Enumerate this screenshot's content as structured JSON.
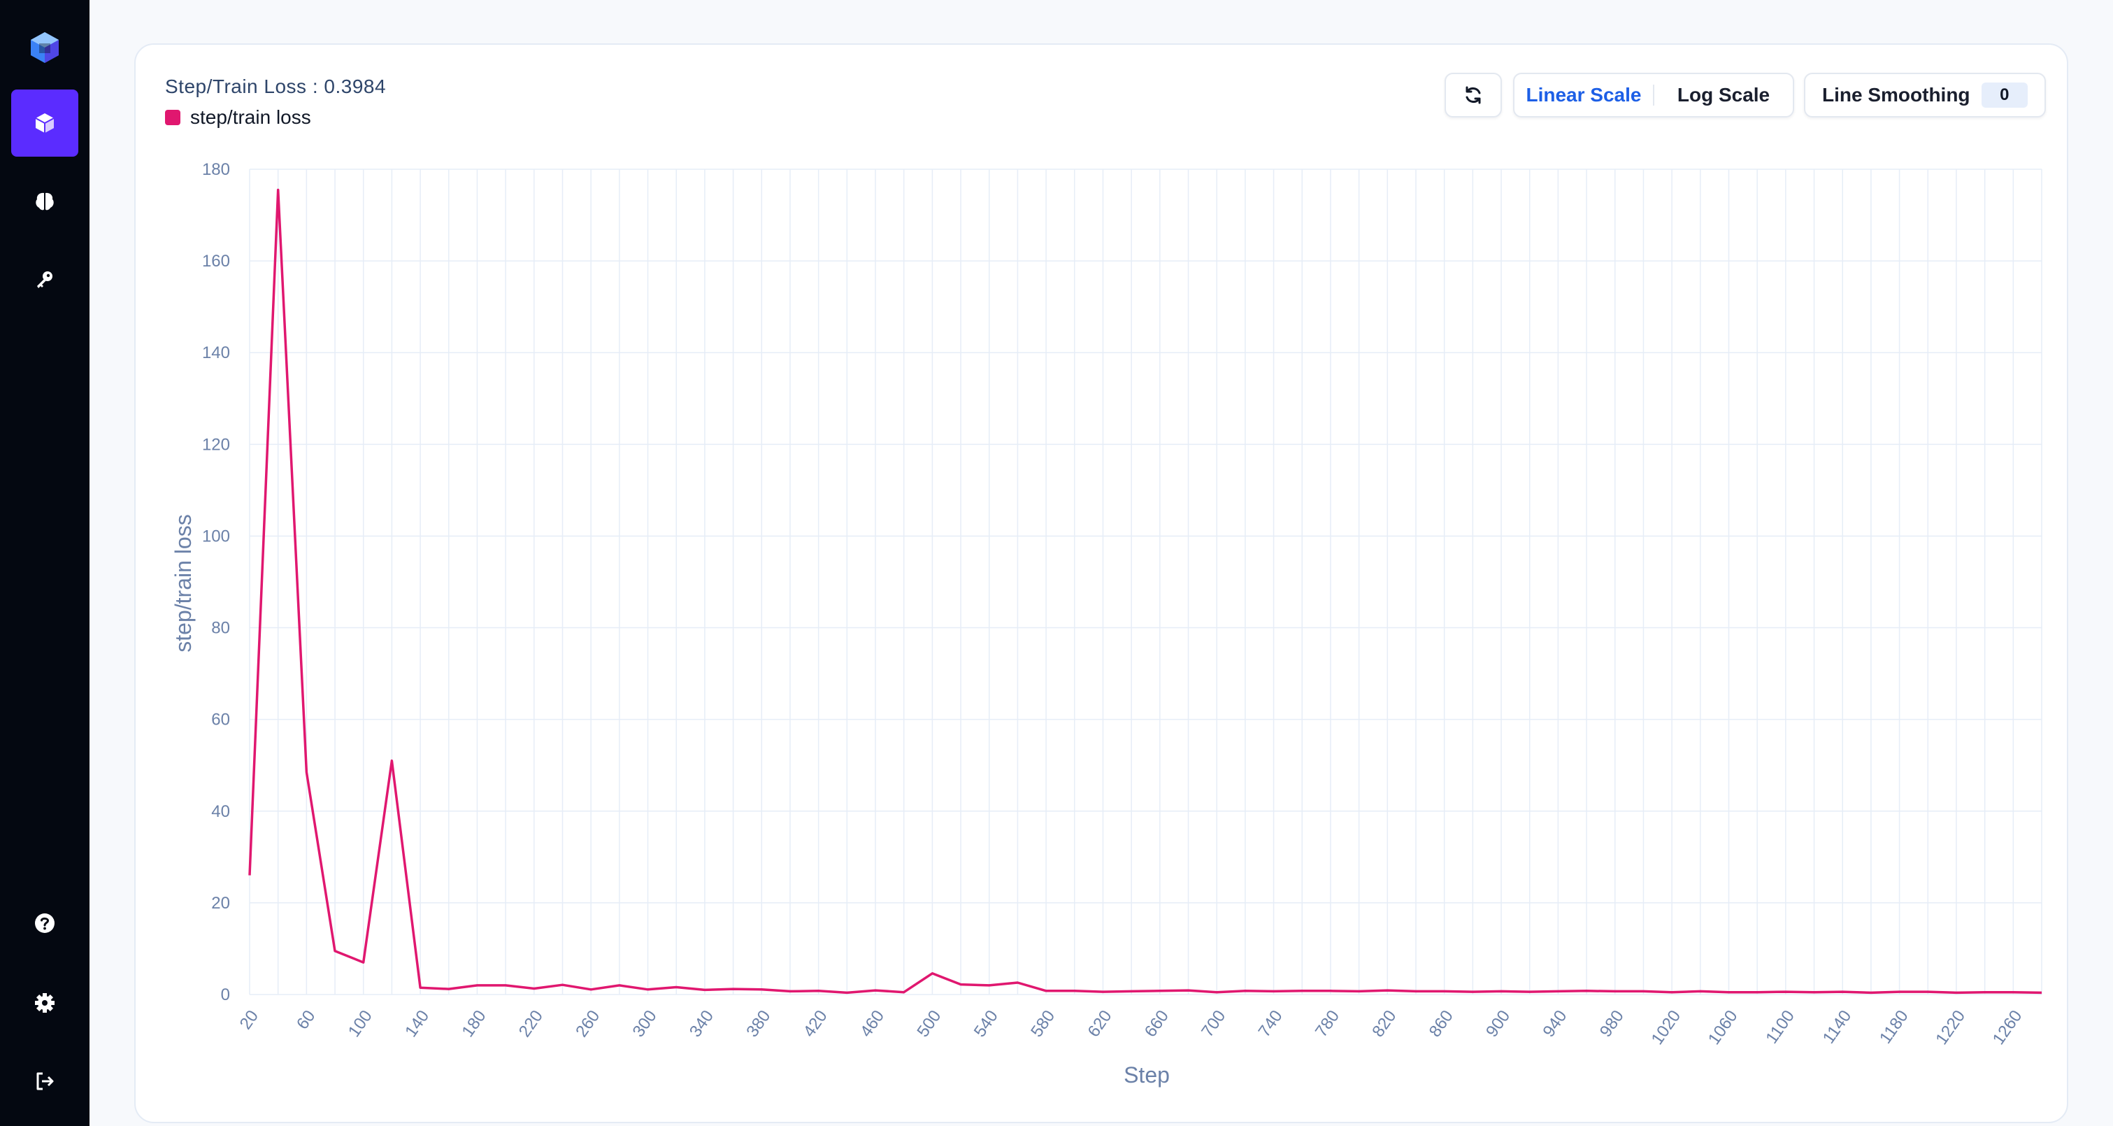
{
  "sidebar": {
    "items": [
      {
        "name": "models",
        "icon": "cube-icon",
        "active": true
      },
      {
        "name": "brain",
        "icon": "brain-icon",
        "active": false
      },
      {
        "name": "keys",
        "icon": "key-icon",
        "active": false
      }
    ],
    "bottom": [
      {
        "name": "help",
        "icon": "help-icon"
      },
      {
        "name": "settings",
        "icon": "gear-icon"
      },
      {
        "name": "logout",
        "icon": "logout-icon"
      }
    ]
  },
  "controls": {
    "refresh_icon": "refresh-icon",
    "linear_label": "Linear Scale",
    "log_label": "Log Scale",
    "active_scale": "linear",
    "smoothing_label": "Line Smoothing",
    "smoothing_value": "0"
  },
  "chart_data": {
    "type": "line",
    "title": "Step/Train Loss : 0.3984",
    "xlabel": "Step",
    "ylabel": "step/train loss",
    "ylim": [
      0,
      180
    ],
    "yticks": [
      0,
      20,
      40,
      60,
      80,
      100,
      120,
      140,
      160,
      180
    ],
    "xticks": [
      20,
      60,
      100,
      140,
      180,
      220,
      260,
      300,
      340,
      380,
      420,
      460,
      500,
      540,
      580,
      620,
      660,
      700,
      740,
      780,
      820,
      860,
      900,
      940,
      980,
      1020,
      1060,
      1100,
      1140,
      1180,
      1220,
      1260
    ],
    "grid": true,
    "legend_position": "top-left",
    "series": [
      {
        "name": "step/train loss",
        "color": "#e0176f",
        "x": [
          20,
          40,
          60,
          80,
          100,
          120,
          140,
          160,
          180,
          200,
          220,
          240,
          260,
          280,
          300,
          320,
          340,
          360,
          380,
          400,
          420,
          440,
          460,
          480,
          500,
          520,
          540,
          560,
          580,
          600,
          620,
          640,
          660,
          680,
          700,
          720,
          740,
          760,
          780,
          800,
          820,
          840,
          860,
          880,
          900,
          920,
          940,
          960,
          980,
          1000,
          1020,
          1040,
          1060,
          1080,
          1100,
          1120,
          1140,
          1160,
          1180,
          1200,
          1220,
          1240,
          1260,
          1280
        ],
        "y": [
          26,
          175.5,
          48.5,
          9.5,
          7,
          51,
          1.5,
          1.2,
          2,
          2,
          1.3,
          2.1,
          1.1,
          2,
          1.1,
          1.6,
          1,
          1.2,
          1.1,
          0.7,
          0.8,
          0.4,
          0.9,
          0.5,
          4.6,
          2.2,
          2,
          2.6,
          0.8,
          0.8,
          0.6,
          0.7,
          0.8,
          0.9,
          0.5,
          0.8,
          0.7,
          0.8,
          0.8,
          0.7,
          0.9,
          0.7,
          0.7,
          0.6,
          0.7,
          0.6,
          0.7,
          0.8,
          0.7,
          0.7,
          0.5,
          0.7,
          0.5,
          0.5,
          0.6,
          0.5,
          0.6,
          0.4,
          0.6,
          0.6,
          0.4,
          0.5,
          0.5,
          0.4
        ]
      }
    ]
  }
}
